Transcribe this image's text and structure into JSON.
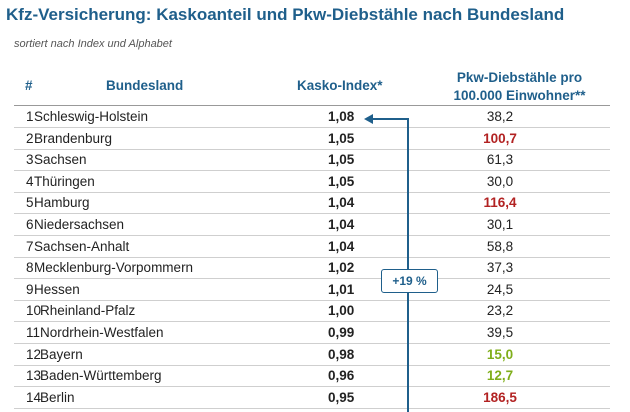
{
  "title": "Kfz-Versicherung: Kaskoanteil und Pkw-Diebstähle nach Bundesland",
  "subtitle": "sortiert nach Index und Alphabet",
  "headers": {
    "num": "#",
    "land": "Bundesland",
    "kasko": "Kasko-Index*",
    "theft_line1": "Pkw-Diebstähle pro",
    "theft_line2": "100.000 Einwohner**"
  },
  "badge": "+19 %",
  "colors": {
    "accent": "#1f5f8b",
    "high": "#b22222",
    "low": "#7fae1a"
  },
  "rows": [
    {
      "num": "1",
      "land": "Schleswig-Holstein",
      "kasko": "1,08",
      "theft": "38,2",
      "status": "normal"
    },
    {
      "num": "2",
      "land": "Brandenburg",
      "kasko": "1,05",
      "theft": "100,7",
      "status": "high"
    },
    {
      "num": "3",
      "land": "Sachsen",
      "kasko": "1,05",
      "theft": "61,3",
      "status": "normal"
    },
    {
      "num": "4",
      "land": "Thüringen",
      "kasko": "1,05",
      "theft": "30,0",
      "status": "normal"
    },
    {
      "num": "5",
      "land": "Hamburg",
      "kasko": "1,04",
      "theft": "116,4",
      "status": "high"
    },
    {
      "num": "6",
      "land": "Niedersachsen",
      "kasko": "1,04",
      "theft": "30,1",
      "status": "normal"
    },
    {
      "num": "7",
      "land": "Sachsen-Anhalt",
      "kasko": "1,04",
      "theft": "58,8",
      "status": "normal"
    },
    {
      "num": "8",
      "land": "Mecklenburg-Vorpommern",
      "kasko": "1,02",
      "theft": "37,3",
      "status": "normal"
    },
    {
      "num": "9",
      "land": "Hessen",
      "kasko": "1,01",
      "theft": "24,5",
      "status": "normal"
    },
    {
      "num": "10",
      "land": "Rheinland-Pfalz",
      "kasko": "1,00",
      "theft": "23,2",
      "status": "normal"
    },
    {
      "num": "11",
      "land": "Nordrhein-Westfalen",
      "kasko": "0,99",
      "theft": "39,5",
      "status": "normal"
    },
    {
      "num": "12",
      "land": "Bayern",
      "kasko": "0,98",
      "theft": "15,0",
      "status": "low"
    },
    {
      "num": "13",
      "land": "Baden-Württemberg",
      "kasko": "0,96",
      "theft": "12,7",
      "status": "low"
    },
    {
      "num": "14",
      "land": "Berlin",
      "kasko": "0,95",
      "theft": "186,5",
      "status": "high"
    }
  ]
}
